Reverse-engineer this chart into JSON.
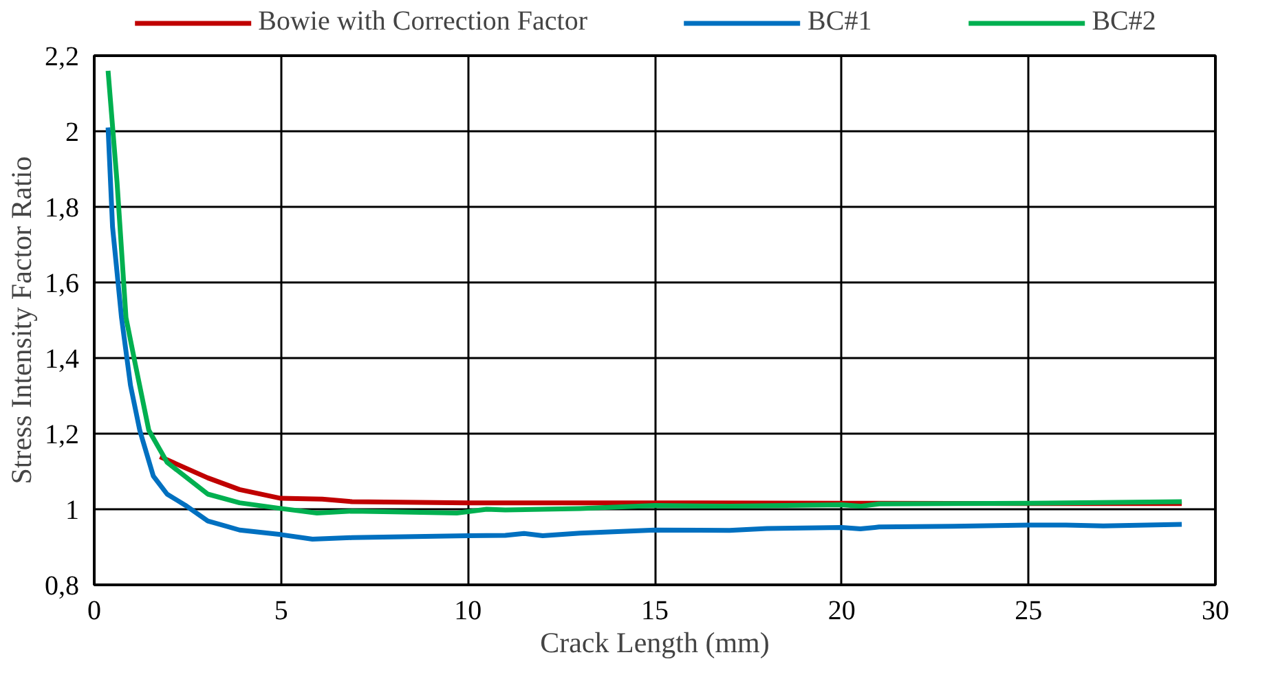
{
  "chart_data": {
    "type": "line",
    "xlabel": "Crack Length (mm)",
    "ylabel": "Stress Intensity Factor Ratio",
    "xlim": [
      0,
      30
    ],
    "xticks": [
      0,
      5,
      10,
      15,
      20,
      25,
      30
    ],
    "ylim": [
      0.8,
      2.2
    ],
    "yticks": [
      {
        "value": 0.8,
        "label": "0,8"
      },
      {
        "value": 1,
        "label": "1"
      },
      {
        "value": 1.2,
        "label": "1,2"
      },
      {
        "value": 1.4,
        "label": "1,4"
      },
      {
        "value": 1.6,
        "label": "1,6"
      },
      {
        "value": 1.8,
        "label": "1,8"
      },
      {
        "value": 2,
        "label": "2"
      },
      {
        "value": 2.2,
        "label": "2,2"
      }
    ],
    "grid": true,
    "legend": "top",
    "marker": "none",
    "line_style": "solid",
    "series": [
      {
        "name": "Bowie with Correction Factor",
        "color": "#c00000",
        "x": [
          1.76,
          3.04,
          3.89,
          4.99,
          6.1,
          6.9,
          10,
          15,
          20,
          25,
          29.1
        ],
        "values": [
          1.139,
          1.083,
          1.052,
          1.029,
          1.027,
          1.02,
          1.017,
          1.017,
          1.016,
          1.015,
          1.015
        ]
      },
      {
        "name": "BC#1",
        "color": "#0070c0",
        "x": [
          0.37,
          0.49,
          0.73,
          0.97,
          1.22,
          1.58,
          1.95,
          2.43,
          3.04,
          3.89,
          4.99,
          5.84,
          6.9,
          8,
          10,
          11,
          11.5,
          12,
          13,
          15,
          17,
          18,
          20,
          20.5,
          21,
          23,
          25,
          26,
          27,
          29.1
        ],
        "values": [
          2.01,
          1.747,
          1.507,
          1.328,
          1.208,
          1.088,
          1.04,
          1.011,
          0.969,
          0.945,
          0.933,
          0.921,
          0.925,
          0.927,
          0.93,
          0.931,
          0.936,
          0.93,
          0.937,
          0.945,
          0.944,
          0.949,
          0.952,
          0.948,
          0.953,
          0.955,
          0.958,
          0.958,
          0.956,
          0.96
        ]
      },
      {
        "name": "BC#2",
        "color": "#00b050",
        "x": [
          0.37,
          0.61,
          0.85,
          1.09,
          1.46,
          1.95,
          3.04,
          3.89,
          4.99,
          5.96,
          6.9,
          8,
          9.7,
          10.5,
          11,
          13,
          15,
          17,
          20,
          20.5,
          21,
          25,
          29.1
        ],
        "values": [
          2.16,
          1.866,
          1.507,
          1.388,
          1.209,
          1.124,
          1.04,
          1.017,
          1.002,
          0.99,
          0.995,
          0.993,
          0.99,
          1.0,
          0.998,
          1.002,
          1.01,
          1.008,
          1.012,
          1.008,
          1.014,
          1.016,
          1.02
        ]
      }
    ]
  }
}
